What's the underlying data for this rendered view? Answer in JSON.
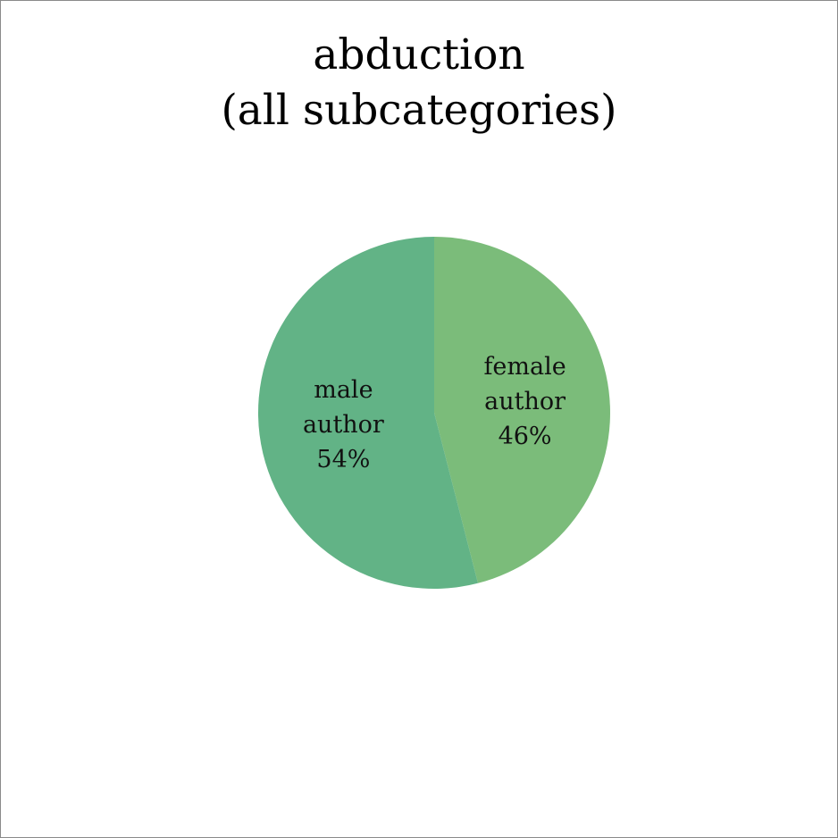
{
  "chart_data": {
    "type": "pie",
    "title": [
      "abduction",
      "(all subcategories)"
    ],
    "categories": [
      "female author",
      "male author"
    ],
    "values": [
      46,
      54
    ],
    "data_labels": [
      [
        "female",
        "author",
        "46%"
      ],
      [
        "male",
        "author",
        "54%"
      ]
    ],
    "colors": [
      "#7bbc7a",
      "#62b386"
    ],
    "legend": "none"
  }
}
